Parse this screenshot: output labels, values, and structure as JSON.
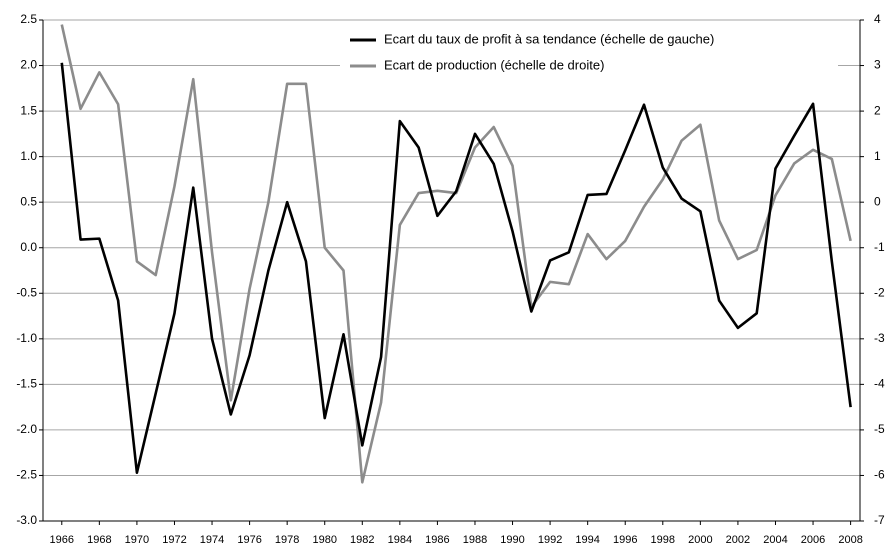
{
  "chart_data": {
    "type": "line",
    "x": [
      1966,
      1967,
      1968,
      1969,
      1970,
      1971,
      1972,
      1973,
      1974,
      1975,
      1976,
      1977,
      1978,
      1979,
      1980,
      1981,
      1982,
      1983,
      1984,
      1985,
      1986,
      1987,
      1988,
      1989,
      1990,
      1991,
      1992,
      1993,
      1994,
      1995,
      1996,
      1997,
      1998,
      1999,
      2000,
      2001,
      2002,
      2003,
      2004,
      2005,
      2006,
      2007,
      2008
    ],
    "series": [
      {
        "name": "Ecart du taux de profit à sa tendance (échelle de gauche)",
        "color": "#000000",
        "axis": "y",
        "values": [
          2.03,
          0.09,
          0.1,
          -0.58,
          -2.47,
          -1.6,
          -0.72,
          0.66,
          -1.0,
          -1.83,
          -1.18,
          -0.25,
          0.5,
          -0.15,
          -1.87,
          -0.95,
          -2.17,
          -1.2,
          1.39,
          1.1,
          0.35,
          0.62,
          1.25,
          0.92,
          0.18,
          -0.7,
          -0.14,
          -0.05,
          0.58,
          0.59,
          1.07,
          1.57,
          0.88,
          0.54,
          0.4,
          -0.58,
          -0.88,
          -0.72,
          0.87,
          1.23,
          1.58,
          -0.15,
          -1.75
        ]
      },
      {
        "name": "Ecart de production (échelle de droite)",
        "color": "#8c8c8c",
        "axis": "y2",
        "values": [
          3.9,
          2.05,
          2.85,
          2.15,
          -1.3,
          -1.6,
          0.35,
          2.7,
          -1.1,
          -4.35,
          -1.9,
          0.0,
          2.6,
          2.6,
          -1.0,
          -1.5,
          -6.15,
          -4.4,
          -0.5,
          0.2,
          0.25,
          0.2,
          1.2,
          1.65,
          0.8,
          -2.3,
          -1.75,
          -1.8,
          -0.7,
          -1.25,
          -0.85,
          -0.1,
          0.5,
          1.35,
          1.7,
          -0.4,
          -1.25,
          -1.05,
          0.15,
          0.85,
          1.15,
          0.95,
          -0.85
        ]
      }
    ],
    "xlim": [
      1965,
      2008.5
    ],
    "xticks": [
      1966,
      1968,
      1970,
      1972,
      1974,
      1976,
      1978,
      1980,
      1982,
      1984,
      1986,
      1988,
      1990,
      1992,
      1994,
      1996,
      1998,
      2000,
      2002,
      2004,
      2006,
      2008
    ],
    "ylim": [
      -3.0,
      2.5
    ],
    "yticks": [
      2.5,
      {
        "value": 2,
        "label": "2.0"
      },
      1.5,
      {
        "value": 1,
        "label": "1.0"
      },
      0.5,
      {
        "value": 0,
        "label": "0.0"
      },
      -0.5,
      {
        "value": -1,
        "label": "-1.0"
      },
      -1.5,
      {
        "value": -2,
        "label": "-2.0"
      },
      -2.5,
      {
        "value": -3,
        "label": "-3.0"
      }
    ],
    "y2lim": [
      -7,
      4
    ],
    "y2ticks": [
      4,
      3,
      2,
      1,
      0,
      -1,
      -2,
      -3,
      -4,
      -5,
      -6,
      -7
    ],
    "grid": true,
    "legend": "top-right"
  }
}
